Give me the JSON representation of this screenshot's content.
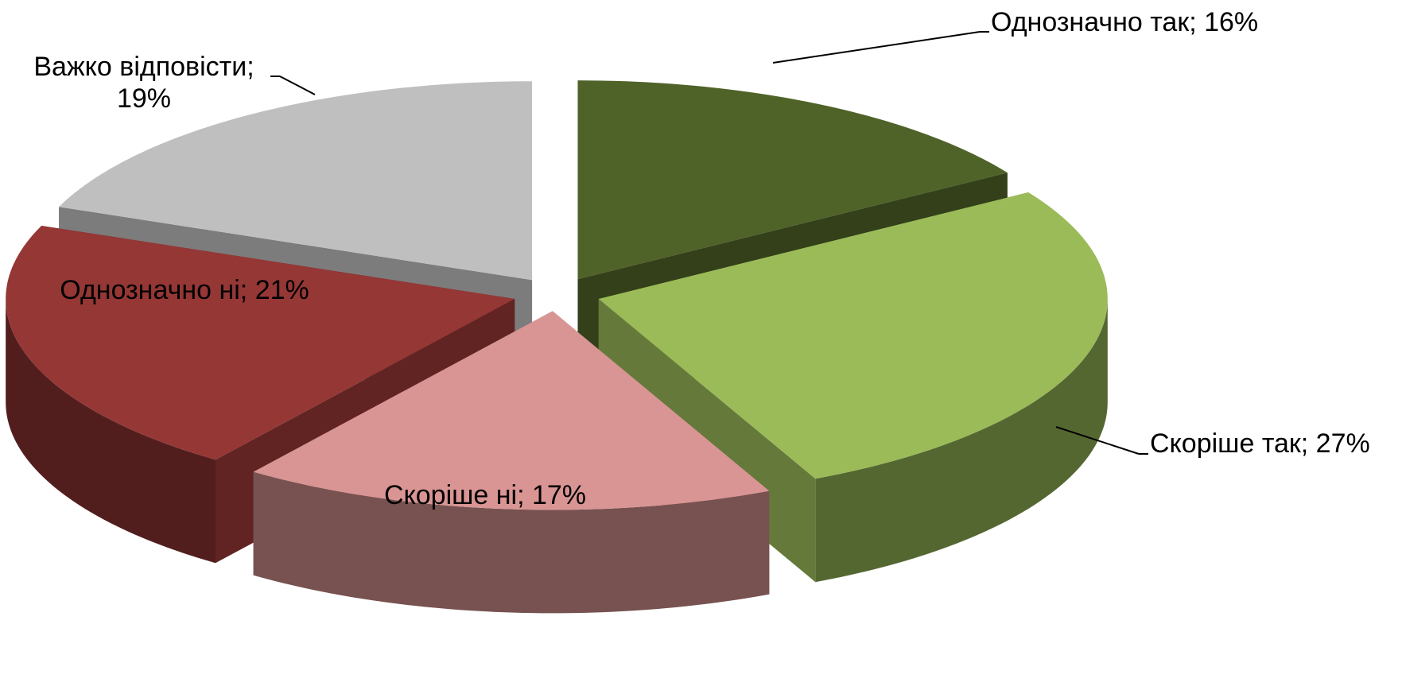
{
  "chart_data": {
    "type": "pie3d",
    "labels": [
      "Однозначно так; 16%",
      "Скоріше так; 27%",
      "Скоріше ні; 17%",
      "Однозначно ні; 21%",
      "Важко відповісти; 19%"
    ],
    "values": [
      16,
      27,
      17,
      21,
      19
    ],
    "colors": [
      "#4f6228",
      "#9bbb59",
      "#d99594",
      "#953735",
      "#bfbfbf"
    ]
  }
}
